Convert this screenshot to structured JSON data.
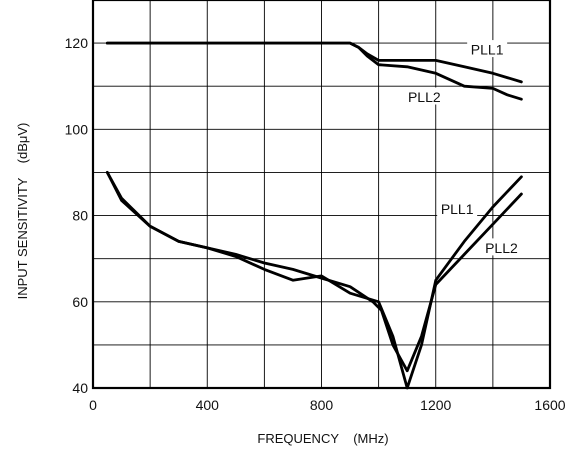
{
  "chart_data": {
    "type": "line",
    "xlabel": "FREQUENCY    (MHz)",
    "ylabel": "INPUT SENSITIVITY    (dBμV)",
    "xlim": [
      0,
      1600
    ],
    "ylim": [
      40,
      130
    ],
    "x_ticks": [
      "0",
      "400",
      "800",
      "1200",
      "1600"
    ],
    "y_ticks": [
      "40",
      "60",
      "80",
      "100",
      "120"
    ],
    "grid": true,
    "series": [
      {
        "name": "PLL1",
        "group": "upper",
        "points": [
          [
            50,
            120
          ],
          [
            400,
            120
          ],
          [
            800,
            120
          ],
          [
            900,
            120
          ],
          [
            930,
            119
          ],
          [
            960,
            117.5
          ],
          [
            1000,
            116
          ],
          [
            1100,
            116
          ],
          [
            1200,
            116
          ],
          [
            1300,
            114.5
          ],
          [
            1400,
            113
          ],
          [
            1450,
            112
          ],
          [
            1500,
            111
          ]
        ]
      },
      {
        "name": "PLL2",
        "group": "upper",
        "points": [
          [
            50,
            120
          ],
          [
            400,
            120
          ],
          [
            800,
            120
          ],
          [
            900,
            120
          ],
          [
            930,
            119
          ],
          [
            960,
            117
          ],
          [
            1000,
            115
          ],
          [
            1100,
            114.5
          ],
          [
            1200,
            113
          ],
          [
            1300,
            110
          ],
          [
            1400,
            109.5
          ],
          [
            1450,
            108
          ],
          [
            1500,
            107
          ]
        ]
      },
      {
        "name": "PLL1",
        "group": "lower",
        "points": [
          [
            50,
            90
          ],
          [
            100,
            84
          ],
          [
            200,
            77.5
          ],
          [
            300,
            74
          ],
          [
            400,
            72.5
          ],
          [
            500,
            70.5
          ],
          [
            600,
            67.5
          ],
          [
            700,
            65
          ],
          [
            800,
            66
          ],
          [
            900,
            62
          ],
          [
            1000,
            60
          ],
          [
            1050,
            52
          ],
          [
            1100,
            40
          ],
          [
            1150,
            50
          ],
          [
            1200,
            65
          ],
          [
            1300,
            74
          ],
          [
            1400,
            82
          ],
          [
            1500,
            89
          ]
        ]
      },
      {
        "name": "PLL2",
        "group": "lower",
        "points": [
          [
            50,
            90
          ],
          [
            100,
            83.5
          ],
          [
            200,
            77.5
          ],
          [
            300,
            74
          ],
          [
            400,
            72.5
          ],
          [
            500,
            71
          ],
          [
            600,
            69
          ],
          [
            700,
            67.5
          ],
          [
            800,
            65.5
          ],
          [
            900,
            63.5
          ],
          [
            980,
            60
          ],
          [
            1010,
            58
          ],
          [
            1050,
            50
          ],
          [
            1100,
            44
          ],
          [
            1150,
            52
          ],
          [
            1200,
            64
          ],
          [
            1300,
            71
          ],
          [
            1400,
            78
          ],
          [
            1500,
            85
          ]
        ]
      }
    ],
    "annotations": [
      {
        "text": "PLL1",
        "x": 1380,
        "y": 118.5
      },
      {
        "text": "PLL2",
        "x": 1160,
        "y": 107.5
      },
      {
        "text": "PLL1",
        "x": 1275,
        "y": 81.5
      },
      {
        "text": "PLL2",
        "x": 1430,
        "y": 72.5
      }
    ]
  }
}
